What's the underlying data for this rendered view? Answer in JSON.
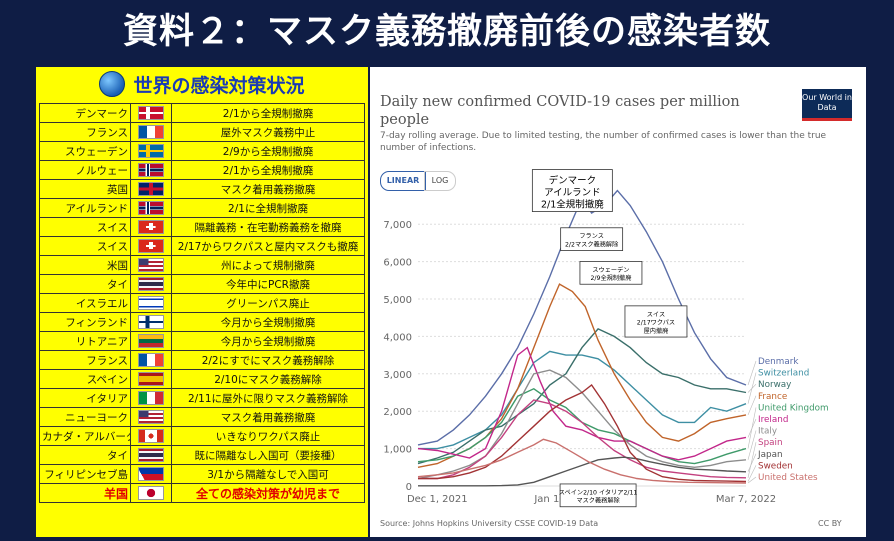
{
  "slide_title": "資料２：マスク義務撤廃前後の感染者数",
  "measures": {
    "title": "世界の感染対策状況",
    "rows": [
      {
        "country": "デンマーク",
        "flag": "denmark-flag",
        "measure": "2/1から全規制撤廃"
      },
      {
        "country": "フランス",
        "flag": "france-flag",
        "measure": "屋外マスク義務中止"
      },
      {
        "country": "スウェーデン",
        "flag": "sweden-flag",
        "measure": "2/9から全規制撤廃"
      },
      {
        "country": "ノルウェー",
        "flag": "norway-flag",
        "measure": "2/1から全規制撤廃"
      },
      {
        "country": "英国",
        "flag": "uk-flag",
        "measure": "マスク着用義務撤廃"
      },
      {
        "country": "アイルランド",
        "flag": "norway-flag",
        "measure": "2/1に全規制撤廃"
      },
      {
        "country": "スイス",
        "flag": "switzerland-flag",
        "measure": "隔離義務・在宅勤務義務を撤廃"
      },
      {
        "country": "スイス",
        "flag": "switzerland-flag",
        "measure": "2/17からワクパスと屋内マスクも撤廃"
      },
      {
        "country": "米国",
        "flag": "usa-flag",
        "measure": "州によって規制撤廃"
      },
      {
        "country": "タイ",
        "flag": "thailand-flag",
        "measure": "今年中にPCR撤廃"
      },
      {
        "country": "イスラエル",
        "flag": "israel-flag",
        "measure": "グリーンパス廃止"
      },
      {
        "country": "フィンランド",
        "flag": "finland-flag",
        "measure": "今月から全規制撤廃"
      },
      {
        "country": "リトアニア",
        "flag": "lithuania-flag",
        "measure": "今月から全規制撤廃"
      },
      {
        "country": "フランス",
        "flag": "france-flag",
        "measure": "2/2にすでにマスク義務解除"
      },
      {
        "country": "スペイン",
        "flag": "spain-flag",
        "measure": "2/10にマスク義務解除"
      },
      {
        "country": "イタリア",
        "flag": "italy-flag",
        "measure": "2/11に屋外に限りマスク義務解除"
      },
      {
        "country": "ニューヨーク",
        "flag": "usa-flag",
        "measure": "マスク着用義務撤廃"
      },
      {
        "country": "カナダ・アルバータ州",
        "flag": "canada-flag",
        "measure": "いきなりワクパス廃止"
      },
      {
        "country": "タイ",
        "flag": "thailand-flag",
        "measure": "既に隔離なし入国可（要接種）"
      },
      {
        "country": "フィリピンセブ島",
        "flag": "philippines-flag",
        "measure": "3/1から隔離なしで入国可"
      },
      {
        "country": "羊国",
        "flag": "japan-flag",
        "measure": "全ての感染対策が幼児まで"
      }
    ]
  },
  "colors": {
    "slide_bg": "#0f1d45",
    "panel_yellow": "#ffff00",
    "grid": "#dddddd",
    "series": {
      "Denmark": "#5b6ea8",
      "Switzerland": "#3e8fa3",
      "Norway": "#3a6f6a",
      "France": "#c0642a",
      "United Kingdom": "#3f9a6a",
      "Ireland": "#c2278a",
      "Italy": "#8d8d8d",
      "Spain": "#c3407f",
      "Japan": "#555555",
      "Sweden": "#a23234",
      "United States": "#c9706d"
    }
  },
  "chart_data": {
    "type": "line",
    "title": "Daily new confirmed COVID-19 cases per million people",
    "subtitle": "7-day rolling average. Due to limited testing, the number of confirmed cases is lower than the true number of infections.",
    "logo": "Our World in Data",
    "scale_options": [
      "LINEAR",
      "LOG"
    ],
    "selected_scale": "LINEAR",
    "source": "Source: Johns Hopkins University CSSE COVID-19 Data",
    "license": "CC BY",
    "x_ticks": [
      {
        "label": "Dec 1, 2021",
        "x": 0
      },
      {
        "label": "Jan 10, 2022",
        "x": 40
      },
      {
        "label": "Mar 7, 2022",
        "x": 96
      }
    ],
    "xlim": [
      -6,
      96
    ],
    "ylim": [
      0,
      7300
    ],
    "y_ticks": [
      0,
      1000,
      2000,
      3000,
      4000,
      5000,
      6000,
      7000
    ],
    "y_tick_labels": [
      "0",
      "1,000",
      "2,000",
      "3,000",
      "4,000",
      "5,000",
      "6,000",
      "7,000"
    ],
    "grid": "horizontal",
    "legend": "right",
    "series": [
      {
        "name": "Denmark",
        "points": [
          [
            -6,
            1100
          ],
          [
            0,
            1200
          ],
          [
            5,
            1500
          ],
          [
            10,
            1900
          ],
          [
            15,
            2400
          ],
          [
            20,
            3000
          ],
          [
            25,
            3700
          ],
          [
            30,
            4600
          ],
          [
            35,
            5600
          ],
          [
            40,
            6700
          ],
          [
            45,
            7700
          ],
          [
            48,
            7300
          ],
          [
            52,
            7500
          ],
          [
            56,
            7900
          ],
          [
            60,
            7500
          ],
          [
            65,
            6800
          ],
          [
            70,
            6000
          ],
          [
            75,
            5000
          ],
          [
            80,
            4100
          ],
          [
            85,
            3400
          ],
          [
            90,
            2900
          ],
          [
            96,
            2700
          ]
        ]
      },
      {
        "name": "Switzerland",
        "points": [
          [
            -6,
            1000
          ],
          [
            0,
            1000
          ],
          [
            5,
            1100
          ],
          [
            10,
            1300
          ],
          [
            15,
            1500
          ],
          [
            20,
            1900
          ],
          [
            25,
            2600
          ],
          [
            30,
            3300
          ],
          [
            35,
            3600
          ],
          [
            40,
            3500
          ],
          [
            45,
            3500
          ],
          [
            50,
            3400
          ],
          [
            55,
            3100
          ],
          [
            60,
            2700
          ],
          [
            65,
            2300
          ],
          [
            70,
            1900
          ],
          [
            75,
            1700
          ],
          [
            80,
            1700
          ],
          [
            85,
            2100
          ],
          [
            90,
            2000
          ],
          [
            96,
            2200
          ]
        ]
      },
      {
        "name": "Norway",
        "points": [
          [
            -6,
            600
          ],
          [
            0,
            750
          ],
          [
            5,
            900
          ],
          [
            10,
            1200
          ],
          [
            15,
            1500
          ],
          [
            20,
            1600
          ],
          [
            25,
            1900
          ],
          [
            30,
            2200
          ],
          [
            35,
            2700
          ],
          [
            40,
            3000
          ],
          [
            45,
            3700
          ],
          [
            50,
            4200
          ],
          [
            55,
            4000
          ],
          [
            60,
            3700
          ],
          [
            65,
            3300
          ],
          [
            70,
            3000
          ],
          [
            75,
            2900
          ],
          [
            80,
            2700
          ],
          [
            85,
            2600
          ],
          [
            90,
            2600
          ],
          [
            96,
            2500
          ]
        ]
      },
      {
        "name": "France",
        "points": [
          [
            -6,
            500
          ],
          [
            0,
            600
          ],
          [
            5,
            800
          ],
          [
            10,
            1000
          ],
          [
            15,
            1300
          ],
          [
            20,
            1800
          ],
          [
            25,
            2600
          ],
          [
            30,
            3700
          ],
          [
            35,
            4800
          ],
          [
            38,
            5400
          ],
          [
            42,
            5200
          ],
          [
            46,
            4800
          ],
          [
            50,
            3900
          ],
          [
            55,
            3000
          ],
          [
            60,
            2300
          ],
          [
            65,
            1700
          ],
          [
            70,
            1300
          ],
          [
            75,
            1200
          ],
          [
            80,
            1400
          ],
          [
            85,
            1700
          ],
          [
            90,
            1800
          ],
          [
            96,
            1900
          ]
        ]
      },
      {
        "name": "United Kingdom",
        "points": [
          [
            -6,
            650
          ],
          [
            0,
            700
          ],
          [
            5,
            800
          ],
          [
            10,
            1000
          ],
          [
            15,
            1300
          ],
          [
            20,
            1700
          ],
          [
            25,
            2400
          ],
          [
            30,
            2600
          ],
          [
            35,
            2300
          ],
          [
            40,
            2100
          ],
          [
            45,
            1700
          ],
          [
            50,
            1500
          ],
          [
            55,
            1400
          ],
          [
            60,
            1200
          ],
          [
            65,
            1000
          ],
          [
            70,
            800
          ],
          [
            75,
            650
          ],
          [
            80,
            600
          ],
          [
            85,
            700
          ],
          [
            90,
            850
          ],
          [
            96,
            1000
          ]
        ]
      },
      {
        "name": "Ireland",
        "points": [
          [
            -6,
            1000
          ],
          [
            0,
            950
          ],
          [
            5,
            850
          ],
          [
            10,
            750
          ],
          [
            15,
            1000
          ],
          [
            20,
            2000
          ],
          [
            25,
            3500
          ],
          [
            28,
            3700
          ],
          [
            32,
            2800
          ],
          [
            36,
            2000
          ],
          [
            40,
            1600
          ],
          [
            45,
            1500
          ],
          [
            50,
            1300
          ],
          [
            55,
            1200
          ],
          [
            60,
            1200
          ],
          [
            65,
            1000
          ],
          [
            70,
            800
          ],
          [
            75,
            700
          ],
          [
            80,
            800
          ],
          [
            85,
            1000
          ],
          [
            90,
            1200
          ],
          [
            96,
            1300
          ]
        ]
      },
      {
        "name": "Italy",
        "points": [
          [
            -6,
            200
          ],
          [
            0,
            300
          ],
          [
            5,
            400
          ],
          [
            10,
            550
          ],
          [
            15,
            800
          ],
          [
            20,
            1400
          ],
          [
            25,
            2200
          ],
          [
            30,
            3000
          ],
          [
            35,
            3100
          ],
          [
            40,
            2900
          ],
          [
            45,
            2500
          ],
          [
            50,
            2000
          ],
          [
            55,
            1500
          ],
          [
            60,
            1100
          ],
          [
            65,
            800
          ],
          [
            70,
            650
          ],
          [
            75,
            550
          ],
          [
            80,
            500
          ],
          [
            85,
            550
          ],
          [
            90,
            650
          ],
          [
            96,
            700
          ]
        ]
      },
      {
        "name": "Spain",
        "points": [
          [
            -6,
            200
          ],
          [
            0,
            200
          ],
          [
            5,
            300
          ],
          [
            10,
            500
          ],
          [
            15,
            800
          ],
          [
            20,
            1300
          ],
          [
            25,
            1900
          ],
          [
            30,
            2300
          ],
          [
            35,
            2200
          ],
          [
            40,
            2000
          ],
          [
            45,
            1700
          ],
          [
            50,
            1300
          ],
          [
            55,
            950
          ],
          [
            60,
            700
          ],
          [
            65,
            500
          ],
          [
            70,
            400
          ],
          [
            75,
            350
          ],
          [
            80,
            300
          ],
          [
            85,
            250
          ],
          [
            90,
            230
          ],
          [
            96,
            220
          ]
        ]
      },
      {
        "name": "Japan",
        "points": [
          [
            -6,
            5
          ],
          [
            0,
            5
          ],
          [
            5,
            5
          ],
          [
            10,
            5
          ],
          [
            15,
            5
          ],
          [
            20,
            10
          ],
          [
            25,
            30
          ],
          [
            30,
            100
          ],
          [
            35,
            250
          ],
          [
            40,
            400
          ],
          [
            45,
            550
          ],
          [
            50,
            700
          ],
          [
            55,
            750
          ],
          [
            58,
            770
          ],
          [
            62,
            730
          ],
          [
            66,
            650
          ],
          [
            70,
            580
          ],
          [
            75,
            500
          ],
          [
            80,
            450
          ],
          [
            85,
            430
          ],
          [
            90,
            400
          ],
          [
            96,
            380
          ]
        ]
      },
      {
        "name": "Sweden",
        "points": [
          [
            -6,
            200
          ],
          [
            0,
            200
          ],
          [
            5,
            250
          ],
          [
            10,
            350
          ],
          [
            15,
            500
          ],
          [
            20,
            800
          ],
          [
            25,
            1200
          ],
          [
            30,
            1600
          ],
          [
            35,
            2000
          ],
          [
            40,
            2300
          ],
          [
            45,
            2500
          ],
          [
            48,
            2700
          ],
          [
            52,
            2200
          ],
          [
            56,
            1600
          ],
          [
            60,
            900
          ],
          [
            65,
            450
          ],
          [
            70,
            250
          ],
          [
            75,
            180
          ],
          [
            80,
            150
          ],
          [
            85,
            140
          ],
          [
            90,
            130
          ],
          [
            96,
            120
          ]
        ]
      },
      {
        "name": "United States",
        "points": [
          [
            -6,
            250
          ],
          [
            0,
            300
          ],
          [
            5,
            350
          ],
          [
            10,
            450
          ],
          [
            15,
            550
          ],
          [
            20,
            700
          ],
          [
            25,
            900
          ],
          [
            30,
            1100
          ],
          [
            33,
            1250
          ],
          [
            37,
            1150
          ],
          [
            42,
            900
          ],
          [
            47,
            650
          ],
          [
            52,
            450
          ],
          [
            57,
            300
          ],
          [
            62,
            200
          ],
          [
            67,
            150
          ],
          [
            72,
            120
          ],
          [
            78,
            100
          ],
          [
            84,
            90
          ],
          [
            90,
            85
          ],
          [
            96,
            80
          ]
        ]
      }
    ],
    "annotations": [
      {
        "lines": [
          "デンマーク",
          "アイルランド",
          "2/1全規制撤廃"
        ],
        "at": [
          42,
          7900
        ],
        "size": "large"
      },
      {
        "lines": [
          "フランス",
          "2/2マスク義務解除"
        ],
        "at": [
          48,
          6600
        ],
        "size": "small"
      },
      {
        "lines": [
          "スウェーデン",
          "2/9全規制撤廃"
        ],
        "at": [
          54,
          5700
        ],
        "size": "small"
      },
      {
        "lines": [
          "スイス",
          "2/17ワクパス",
          "屋内撤廃"
        ],
        "at": [
          68,
          4400
        ],
        "size": "small"
      },
      {
        "lines": [
          "スペイン2/10 イタリア2/11",
          "マスク義務解除"
        ],
        "at": [
          50,
          -250
        ],
        "size": "small"
      }
    ]
  }
}
